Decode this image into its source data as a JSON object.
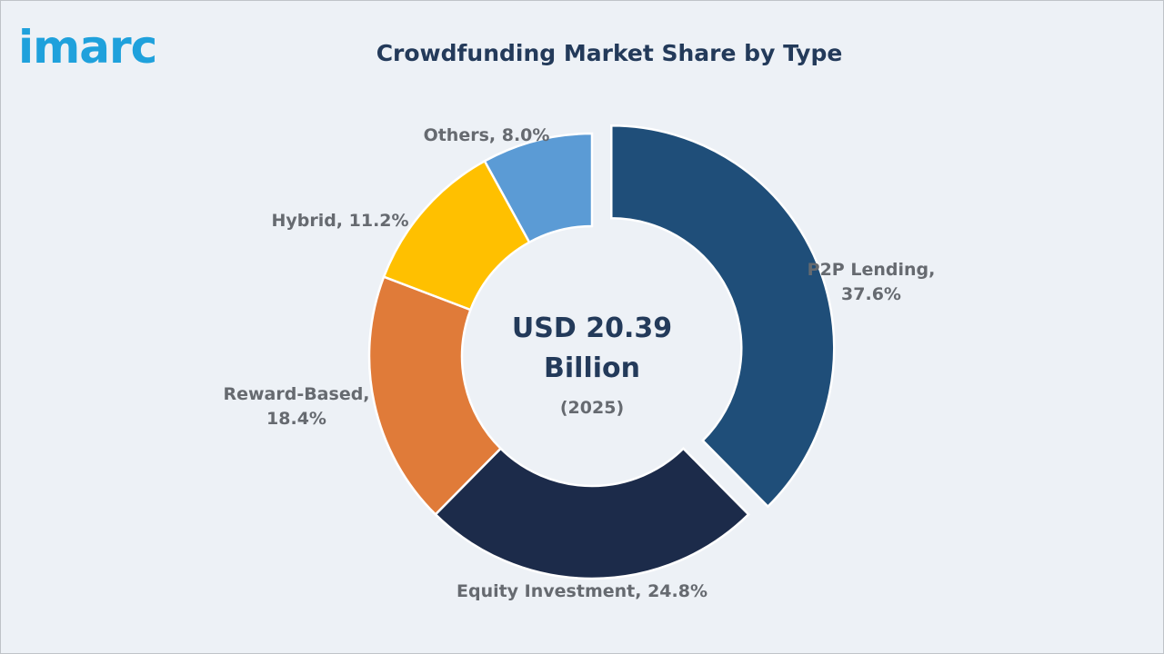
{
  "brand": {
    "logo_text": "imarc"
  },
  "colors": {
    "background": "#edf1f6",
    "title": "#233a5a",
    "label": "#666a70",
    "logo": "#1fa1dc"
  },
  "chart_data": {
    "type": "pie",
    "variant": "donut",
    "title": "Crowdfunding Market Share by Type",
    "unit": "%",
    "center_text": {
      "line1": "USD 20.39",
      "line2": "Billion",
      "line3": "(2025)"
    },
    "exploded_slice": "P2P Lending",
    "slices": [
      {
        "name": "P2P Lending",
        "value": 37.6,
        "label_line1": "P2P Lending,",
        "label_line2": "37.6%",
        "color": "#1f4e79",
        "icon": ""
      },
      {
        "name": "Equity Investment",
        "value": 24.8,
        "label_line1": "Equity Investment, 24.8%",
        "label_line2": "",
        "color": "#1c2b4a"
      },
      {
        "name": "Reward-Based",
        "value": 18.4,
        "label_line1": "Reward-Based,",
        "label_line2": "18.4%",
        "color": "#e07b39"
      },
      {
        "name": "Hybrid",
        "value": 11.2,
        "label_line1": "Hybrid, 11.2%",
        "label_line2": "",
        "color": "#ffc000"
      },
      {
        "name": "Others",
        "value": 8.0,
        "label_line1": "Others, 8.0%",
        "label_line2": "",
        "color": "#5b9bd5"
      }
    ]
  }
}
